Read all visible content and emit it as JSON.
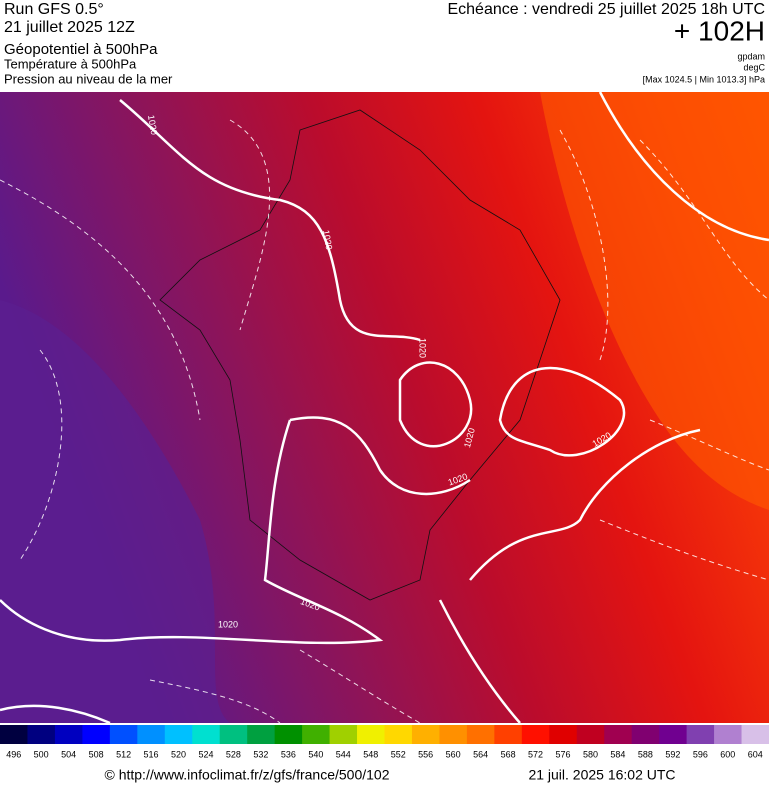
{
  "header": {
    "run": "Run GFS 0.5°",
    "run_date": "21 juillet 2025 12Z",
    "field1": "Géopotentiel à 500hPa",
    "field2": "Température à 500hPa",
    "field3": "Pression au niveau de la mer",
    "valid": "Echéance : vendredi 25 juillet 2025 18h UTC",
    "lead": "+ 102H",
    "unit1": "gpdam",
    "unit2": "degC",
    "range": "[Max 1024.5 | Min 1013.3] hPa"
  },
  "map": {
    "contour_labels": [
      "1020",
      "1020",
      "1020",
      "1020",
      "1020",
      "1020",
      "1020",
      "1020"
    ]
  },
  "colorbar": {
    "values": [
      496,
      500,
      504,
      508,
      512,
      516,
      520,
      524,
      528,
      532,
      536,
      540,
      544,
      548,
      552,
      556,
      560,
      564,
      568,
      572,
      576,
      580,
      584,
      588,
      592,
      596,
      600,
      604
    ],
    "colors": [
      "#000040",
      "#000080",
      "#0000c0",
      "#0000ff",
      "#0050ff",
      "#0090ff",
      "#00c0ff",
      "#00e0d0",
      "#00c080",
      "#00a040",
      "#009000",
      "#40b000",
      "#a0d000",
      "#f0f000",
      "#ffd800",
      "#ffb000",
      "#ff9000",
      "#ff7000",
      "#ff4000",
      "#ff1000",
      "#e00000",
      "#c00020",
      "#a00050",
      "#800070",
      "#700090",
      "#8040b0",
      "#b080d0",
      "#d8c0e8"
    ]
  },
  "footer": {
    "url": "© http://www.infoclimat.fr/z/gfs/france/500/102",
    "timestamp": "21 juil. 2025 16:02 UTC"
  }
}
